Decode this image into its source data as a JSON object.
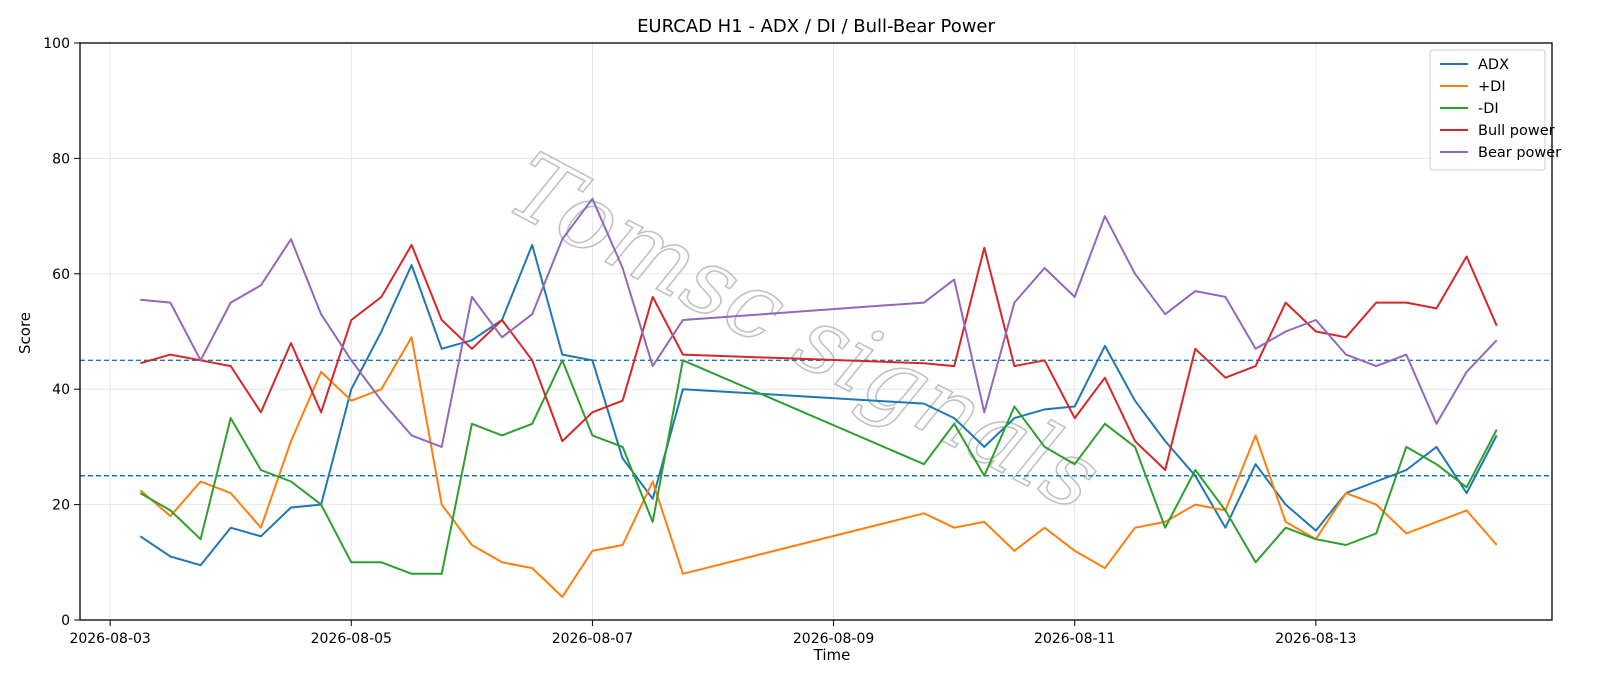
{
  "chart_data": {
    "type": "line",
    "title": "EURCAD H1 - ADX / DI / Bull-Bear Power",
    "xlabel": "Time",
    "ylabel": "Score",
    "ylim": [
      0,
      100
    ],
    "yticks": [
      0,
      20,
      40,
      60,
      80,
      100
    ],
    "xlim": [
      "2026-08-02T18:00",
      "2026-08-14T23:00"
    ],
    "xticks": [
      "2026-08-03",
      "2026-08-05",
      "2026-08-07",
      "2026-08-09",
      "2026-08-11",
      "2026-08-13"
    ],
    "grid": true,
    "legend_position": "top-right",
    "reference_lines": [
      {
        "y": 45,
        "style": "dashed",
        "color": "#1f77b4"
      },
      {
        "y": 25,
        "style": "dashed",
        "color": "#1f77b4"
      }
    ],
    "watermark": "Tomsc signals",
    "x": [
      "2026-08-03T06:00",
      "2026-08-03T12:00",
      "2026-08-03T18:00",
      "2026-08-04T00:00",
      "2026-08-04T06:00",
      "2026-08-04T12:00",
      "2026-08-04T18:00",
      "2026-08-05T00:00",
      "2026-08-05T06:00",
      "2026-08-05T12:00",
      "2026-08-05T18:00",
      "2026-08-06T00:00",
      "2026-08-06T06:00",
      "2026-08-06T12:00",
      "2026-08-06T18:00",
      "2026-08-07T00:00",
      "2026-08-07T06:00",
      "2026-08-07T12:00",
      "2026-08-07T18:00",
      "2026-08-09T18:00",
      "2026-08-10T00:00",
      "2026-08-10T06:00",
      "2026-08-10T12:00",
      "2026-08-10T18:00",
      "2026-08-11T00:00",
      "2026-08-11T06:00",
      "2026-08-11T12:00",
      "2026-08-11T18:00",
      "2026-08-12T00:00",
      "2026-08-12T06:00",
      "2026-08-12T12:00",
      "2026-08-12T18:00",
      "2026-08-13T00:00",
      "2026-08-13T06:00",
      "2026-08-13T12:00",
      "2026-08-13T18:00",
      "2026-08-14T00:00",
      "2026-08-14T06:00",
      "2026-08-14T12:00"
    ],
    "series": [
      {
        "name": "ADX",
        "color": "#1f77b4",
        "values": [
          14.5,
          11,
          9.5,
          16,
          14.5,
          19.5,
          20,
          40,
          50,
          61.5,
          47,
          48.5,
          52,
          65,
          46,
          45,
          28,
          21,
          40,
          37.5,
          35,
          30,
          35,
          36.5,
          37,
          47.5,
          38,
          31,
          25,
          16,
          27,
          20,
          15.5,
          22,
          24,
          26,
          30,
          22,
          32
        ]
      },
      {
        "name": "+DI",
        "color": "#ff7f0e",
        "values": [
          22.5,
          18,
          24,
          22,
          16,
          31,
          43,
          38,
          40,
          49,
          20,
          13,
          10,
          9,
          4,
          12,
          13,
          24,
          8,
          18.5,
          16,
          17,
          12,
          16,
          12,
          9,
          16,
          17,
          20,
          19,
          32,
          17,
          14,
          22,
          20,
          15,
          17,
          19,
          13
        ]
      },
      {
        "name": "-DI",
        "color": "#2ca02c",
        "values": [
          22,
          19,
          14,
          35,
          26,
          24,
          20,
          10,
          10,
          8,
          8,
          34,
          32,
          34,
          45,
          32,
          30,
          17,
          45,
          27,
          34,
          25,
          37,
          30,
          27,
          34,
          30,
          16,
          26,
          19,
          10,
          16,
          14,
          13,
          15,
          30,
          27,
          23,
          33
        ]
      },
      {
        "name": "Bull power",
        "color": "#d62728",
        "values": [
          44.5,
          46,
          45,
          44,
          36,
          48,
          36,
          52,
          56,
          65,
          52,
          47,
          52,
          45,
          31,
          36,
          38,
          56,
          46,
          44.5,
          44,
          64.5,
          44,
          45,
          35,
          42,
          31,
          26,
          47,
          42,
          44,
          55,
          50,
          49,
          55,
          55,
          54,
          63,
          51
        ]
      },
      {
        "name": "Bear power",
        "color": "#9467bd",
        "values": [
          55.5,
          55,
          45,
          55,
          58,
          66,
          53,
          45,
          38,
          32,
          30,
          56,
          49,
          53,
          66,
          73,
          61,
          44,
          52,
          55,
          59,
          36,
          55,
          61,
          56,
          70,
          60,
          53,
          57,
          56,
          47,
          50,
          52,
          46,
          44,
          46,
          34,
          43,
          48.5
        ]
      }
    ]
  }
}
